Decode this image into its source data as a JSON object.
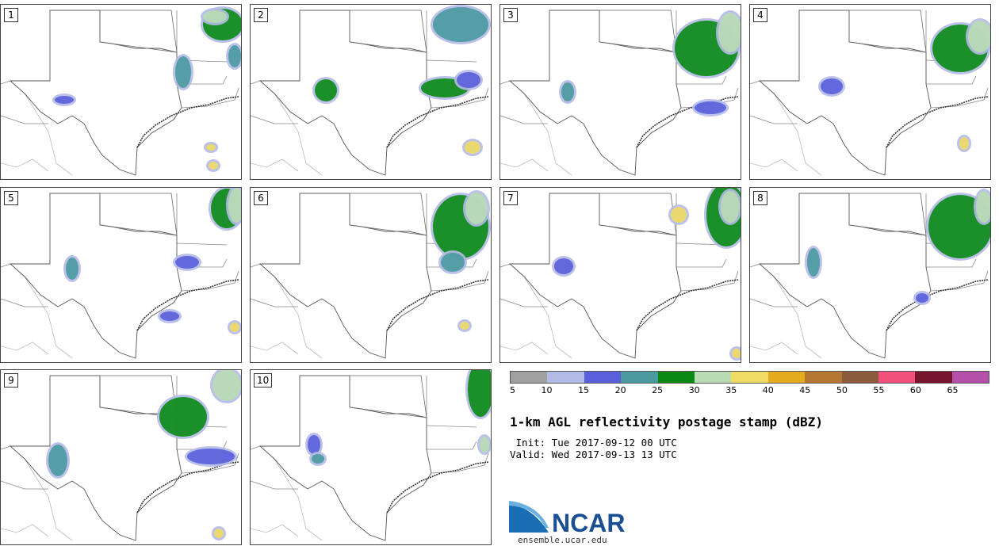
{
  "panels": [
    {
      "label": "1"
    },
    {
      "label": "2"
    },
    {
      "label": "3"
    },
    {
      "label": "4"
    },
    {
      "label": "5"
    },
    {
      "label": "6"
    },
    {
      "label": "7"
    },
    {
      "label": "8"
    },
    {
      "label": "9"
    },
    {
      "label": "10"
    }
  ],
  "colorbar": {
    "colors": [
      "#a0a0a0",
      "#b4bae6",
      "#5a5fdc",
      "#4a9aa0",
      "#0a8a14",
      "#b9dcb4",
      "#f0dc64",
      "#e6aa1e",
      "#b47832",
      "#8c5a3c",
      "#f0507a",
      "#78142d",
      "#b450aa"
    ],
    "tick_labels": [
      "5",
      "10",
      "15",
      "20",
      "25",
      "30",
      "35",
      "40",
      "45",
      "50",
      "55",
      "60",
      "65"
    ]
  },
  "title": "1-km AGL reflectivity postage stamp (dBZ)",
  "init_line": " Init: Tue 2017-09-12 00 UTC",
  "valid_line": "Valid: Wed 2017-09-13 13 UTC",
  "logo_text": "NCAR",
  "url": "ensemble.ucar.edu"
}
